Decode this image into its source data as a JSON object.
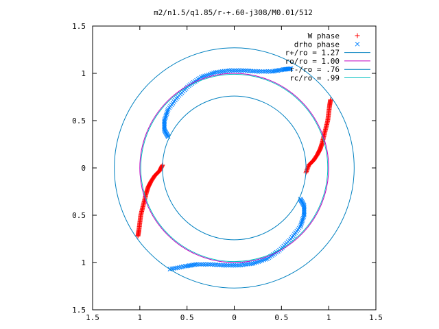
{
  "chart_data": {
    "type": "scatter",
    "title": "m2/n1.5/q1.85/r-+.60-j308/M0.01/512",
    "xlabel": "",
    "ylabel": "",
    "xlim": [
      -1.5,
      1.5
    ],
    "ylim": [
      -1.5,
      1.5
    ],
    "x_ticks": [
      -1.5,
      -1,
      -0.5,
      0,
      0.5,
      1,
      1.5
    ],
    "x_tick_labels": [
      "1.5",
      "1",
      "0.5",
      "0",
      "0.5",
      "1",
      "1.5"
    ],
    "y_ticks": [
      -1.5,
      -1,
      -0.5,
      0,
      0.5,
      1,
      1.5
    ],
    "y_tick_labels": [
      "1.5",
      "1",
      "0.5",
      "0",
      "0.5",
      "1",
      "1.5"
    ],
    "grid": false,
    "legend_position": "top-right",
    "series": [
      {
        "name": "W phase",
        "kind": "points",
        "marker": "plus",
        "color": "#ff0000",
        "arms": [
          [
            [
              1.02,
              0.72
            ],
            [
              1.01,
              0.66
            ],
            [
              1.0,
              0.58
            ],
            [
              0.99,
              0.5
            ],
            [
              0.97,
              0.42
            ],
            [
              0.95,
              0.34
            ],
            [
              0.93,
              0.26
            ],
            [
              0.91,
              0.2
            ],
            [
              0.88,
              0.14
            ],
            [
              0.84,
              0.08
            ],
            [
              0.79,
              0.03
            ],
            [
              0.76,
              -0.05
            ]
          ],
          [
            [
              -1.02,
              -0.72
            ],
            [
              -1.01,
              -0.66
            ],
            [
              -1.0,
              -0.58
            ],
            [
              -0.99,
              -0.5
            ],
            [
              -0.97,
              -0.42
            ],
            [
              -0.95,
              -0.34
            ],
            [
              -0.93,
              -0.26
            ],
            [
              -0.91,
              -0.2
            ],
            [
              -0.88,
              -0.14
            ],
            [
              -0.84,
              -0.08
            ],
            [
              -0.79,
              -0.03
            ],
            [
              -0.76,
              0.03
            ]
          ]
        ]
      },
      {
        "name": "drho phase",
        "kind": "points",
        "marker": "cross",
        "color": "#0080ff",
        "arms": [
          [
            [
              -0.7,
              0.33
            ],
            [
              -0.74,
              0.4
            ],
            [
              -0.74,
              0.5
            ],
            [
              -0.7,
              0.62
            ],
            [
              -0.6,
              0.75
            ],
            [
              -0.48,
              0.87
            ],
            [
              -0.35,
              0.96
            ],
            [
              -0.2,
              1.01
            ],
            [
              -0.05,
              1.03
            ],
            [
              0.1,
              1.03
            ],
            [
              0.25,
              1.02
            ],
            [
              0.4,
              1.02
            ],
            [
              0.52,
              1.04
            ],
            [
              0.6,
              1.05
            ]
          ],
          [
            [
              0.7,
              -0.33
            ],
            [
              0.74,
              -0.4
            ],
            [
              0.74,
              -0.5
            ],
            [
              0.7,
              -0.62
            ],
            [
              0.6,
              -0.75
            ],
            [
              0.48,
              -0.87
            ],
            [
              0.35,
              -0.96
            ],
            [
              0.2,
              -1.01
            ],
            [
              0.05,
              -1.03
            ],
            [
              -0.1,
              -1.03
            ],
            [
              -0.25,
              -1.02
            ],
            [
              -0.4,
              -1.02
            ],
            [
              -0.52,
              -1.04
            ],
            [
              -0.68,
              -1.07
            ]
          ]
        ]
      },
      {
        "name": "r+/ro = 1.27",
        "kind": "circle",
        "radius": 1.27,
        "center": [
          0,
          0
        ],
        "color": "#0080c0"
      },
      {
        "name": "ro/ro = 1.00",
        "kind": "circle",
        "radius": 1.0,
        "center": [
          0,
          0
        ],
        "color": "#c000c0"
      },
      {
        "name": "r-/ro = .76",
        "kind": "circle",
        "radius": 0.76,
        "center": [
          0,
          0
        ],
        "color": "#0080c0"
      },
      {
        "name": "rc/ro = .99",
        "kind": "circle",
        "radius": 0.99,
        "center": [
          0,
          0
        ],
        "color": "#00c0c0"
      }
    ]
  }
}
